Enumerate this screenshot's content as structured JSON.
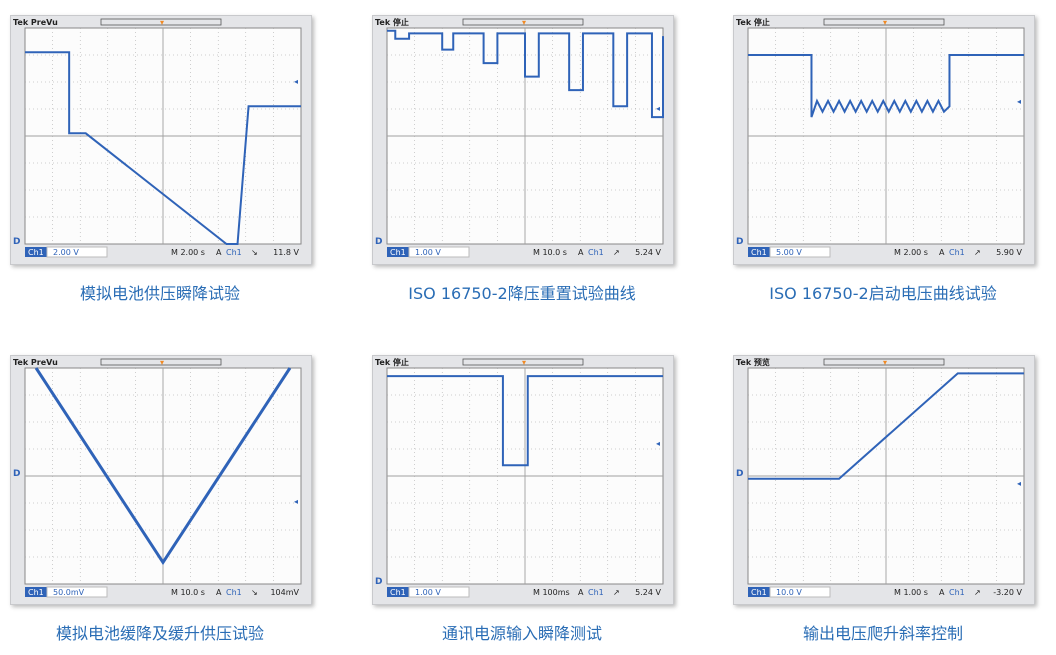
{
  "colors": {
    "trace": "#2f63b8",
    "grid": "#a0a0a0",
    "caption": "#2a6db5",
    "trigger": "#f08a24"
  },
  "scopes": [
    {
      "caption": "模拟电池供压瞬降试验",
      "header": "Tek PreVu",
      "ch": "Ch1",
      "scale": "2.00 V",
      "time": "M 2.00 s",
      "trig": "A",
      "trig_ch": "Ch1",
      "slope": "↘",
      "level": "11.8 V",
      "trace": [
        [
          0,
          0.9
        ],
        [
          1.6,
          0.9
        ],
        [
          1.6,
          3.9
        ],
        [
          2.2,
          3.9
        ],
        [
          7.3,
          8
        ],
        [
          7.7,
          8
        ],
        [
          8.1,
          2.9
        ],
        [
          10,
          2.9
        ]
      ]
    },
    {
      "caption": "ISO 16750-2降压重置试验曲线",
      "header": "Tek 停止",
      "ch": "Ch1",
      "scale": "1.00 V",
      "time": "M 10.0 s",
      "trig": "A",
      "trig_ch": "Ch1",
      "slope": "↗",
      "level": "5.24 V",
      "trace": [
        [
          0,
          0.1
        ],
        [
          0.3,
          0.1
        ],
        [
          0.3,
          0.4
        ],
        [
          0.8,
          0.4
        ],
        [
          0.8,
          0.2
        ],
        [
          2,
          0.2
        ],
        [
          2,
          0.8
        ],
        [
          2.4,
          0.8
        ],
        [
          2.4,
          0.2
        ],
        [
          3.5,
          0.2
        ],
        [
          3.5,
          1.3
        ],
        [
          4,
          1.3
        ],
        [
          4,
          0.2
        ],
        [
          5,
          0.2
        ],
        [
          5,
          1.8
        ],
        [
          5.5,
          1.8
        ],
        [
          5.5,
          0.2
        ],
        [
          6.6,
          0.2
        ],
        [
          6.6,
          2.3
        ],
        [
          7.1,
          2.3
        ],
        [
          7.1,
          0.2
        ],
        [
          8.2,
          0.2
        ],
        [
          8.2,
          2.9
        ],
        [
          8.7,
          2.9
        ],
        [
          8.7,
          0.2
        ],
        [
          9.6,
          0.2
        ],
        [
          9.6,
          3.3
        ],
        [
          10,
          3.3
        ],
        [
          10,
          0.3
        ]
      ]
    },
    {
      "caption": "ISO 16750-2启动电压曲线试验",
      "header": "Tek 停止",
      "ch": "Ch1",
      "scale": "5.00 V",
      "time": "M 2.00 s",
      "trig": "A",
      "trig_ch": "Ch1",
      "slope": "↗",
      "level": "5.90 V",
      "trace": [
        [
          0,
          1
        ],
        [
          2.3,
          1
        ],
        [
          2.3,
          3.3
        ],
        [
          2.5,
          2.7
        ],
        [
          2.7,
          3.1
        ],
        [
          2.9,
          2.7
        ],
        [
          3.1,
          3.1
        ],
        [
          3.3,
          2.7
        ],
        [
          3.5,
          3.1
        ],
        [
          3.7,
          2.7
        ],
        [
          3.9,
          3.1
        ],
        [
          4.1,
          2.7
        ],
        [
          4.3,
          3.1
        ],
        [
          4.5,
          2.7
        ],
        [
          4.7,
          3.1
        ],
        [
          4.9,
          2.7
        ],
        [
          5.1,
          3.1
        ],
        [
          5.3,
          2.7
        ],
        [
          5.5,
          3.1
        ],
        [
          5.7,
          2.7
        ],
        [
          5.9,
          3.1
        ],
        [
          6.1,
          2.7
        ],
        [
          6.3,
          3.1
        ],
        [
          6.5,
          2.7
        ],
        [
          6.7,
          3.1
        ],
        [
          6.9,
          2.7
        ],
        [
          7.1,
          3.1
        ],
        [
          7.3,
          2.9
        ],
        [
          7.3,
          1
        ],
        [
          10,
          1
        ]
      ]
    },
    {
      "caption": "模拟电池缓降及缓升供压试验",
      "header": "Tek PreVu",
      "ch": "Ch1",
      "scale": "50.0mV",
      "time": "M 10.0 s",
      "trig": "A",
      "trig_ch": "Ch1",
      "slope": "↘",
      "level": "104mV",
      "trace": [
        [
          0.4,
          0
        ],
        [
          5,
          7.2
        ],
        [
          9.6,
          0
        ]
      ]
    },
    {
      "caption": "通讯电源输入瞬降测试",
      "header": "Tek 停止",
      "ch": "Ch1",
      "scale": "1.00 V",
      "time": "M 100ms",
      "trig": "A",
      "trig_ch": "Ch1",
      "slope": "↗",
      "level": "5.24 V",
      "trace": [
        [
          0,
          0.3
        ],
        [
          4.2,
          0.3
        ],
        [
          4.2,
          3.6
        ],
        [
          5.1,
          3.6
        ],
        [
          5.1,
          0.3
        ],
        [
          10,
          0.3
        ]
      ]
    },
    {
      "caption": "输出电压爬升斜率控制",
      "header": "Tek 预览",
      "ch": "Ch1",
      "scale": "10.0 V",
      "time": "M 1.00 s",
      "trig": "A",
      "trig_ch": "Ch1",
      "slope": "↗",
      "level": "-3.20 V",
      "trace": [
        [
          0,
          4.1
        ],
        [
          3.3,
          4.1
        ],
        [
          7.6,
          0.2
        ],
        [
          10,
          0.2
        ]
      ]
    }
  ]
}
